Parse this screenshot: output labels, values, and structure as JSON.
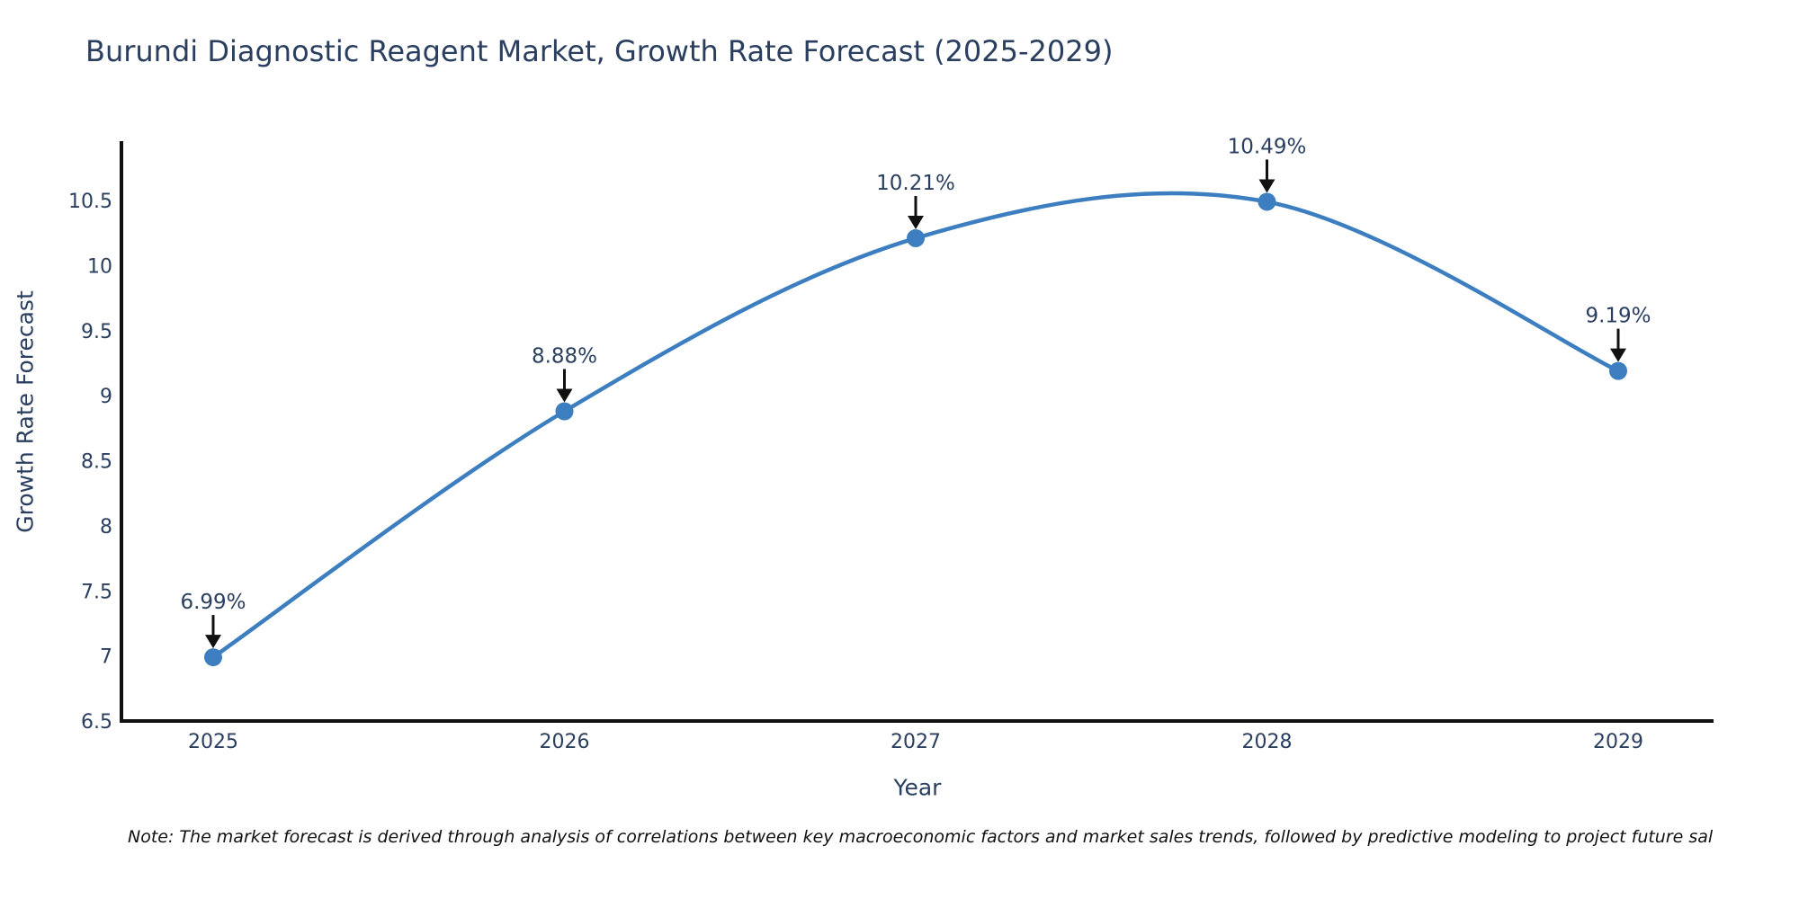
{
  "title": "Burundi Diagnostic Reagent Market, Growth Rate Forecast (2025-2029)",
  "footnote": "Note: The market forecast is derived through analysis of correlations between key macroeconomic factors and market sales trends, followed by predictive modeling to project future sal",
  "colors": {
    "line": "#3c7ebf",
    "marker": "#3c7ebf",
    "text": "#2a3f5f",
    "axis_spine": "#111111",
    "arrow": "#111111",
    "background": "#ffffff"
  },
  "chart_data": {
    "type": "line",
    "title": "Burundi Diagnostic Reagent Market, Growth Rate Forecast (2025-2029)",
    "x": [
      2025,
      2026,
      2027,
      2028,
      2029
    ],
    "categories": [
      "2025",
      "2026",
      "2027",
      "2028",
      "2029"
    ],
    "values": [
      6.99,
      8.88,
      10.21,
      10.49,
      9.19
    ],
    "point_labels": [
      "6.99%",
      "8.88%",
      "10.21%",
      "10.49%",
      "9.19%"
    ],
    "xlabel": "Year",
    "ylabel": "Growth Rate Forecast",
    "ylim": [
      6.5,
      10.95
    ],
    "ytick_labels": [
      "6.5",
      "7",
      "7.5",
      "8",
      "8.5",
      "9",
      "9.5",
      "10",
      "10.5"
    ],
    "ytick_values": [
      6.5,
      7,
      7.5,
      8,
      8.5,
      9,
      9.5,
      10,
      10.5
    ],
    "grid": false,
    "legend_position": "none",
    "line_shape": "spline",
    "marker_style": "circle",
    "annotation_arrows": true
  }
}
